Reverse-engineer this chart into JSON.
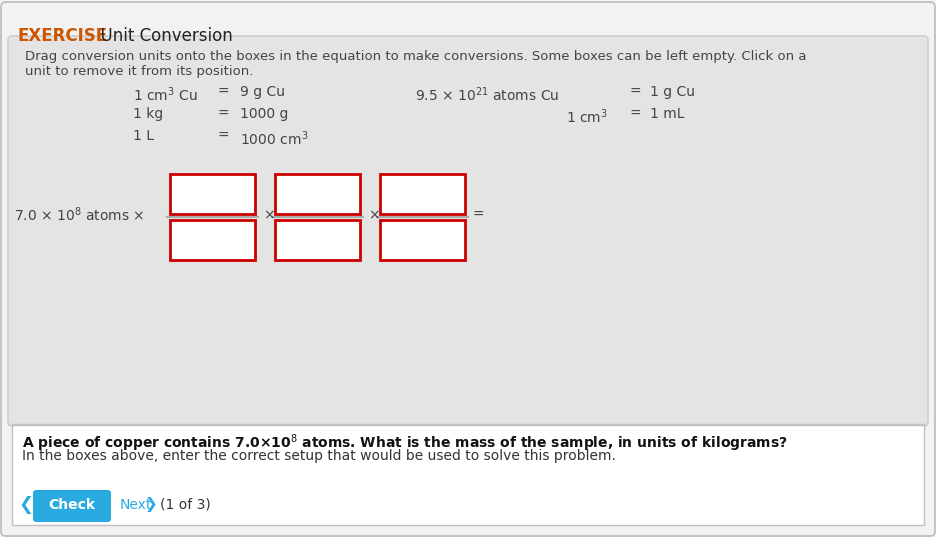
{
  "title_exercise": "EXERCISE",
  "title_text": "  Unit Conversion",
  "instruction_line1": "Drag conversion units onto the boxes in the equation to make conversions. Some boxes can be left empty. Click on a",
  "instruction_line2": "unit to remove it from its position.",
  "conv1_left": "1 cm$^3$ Cu",
  "conv1_eq": "=",
  "conv1_right": "9 g Cu",
  "conv1_left2": "9.5 × 10$^{21}$ atoms Cu",
  "conv1_eq2": "=",
  "conv1_right2": "1 g Cu",
  "conv2_left": "1 kg",
  "conv2_eq": "=",
  "conv2_right": "1000 g",
  "conv2_left2": "1 cm$^3$",
  "conv2_eq2": "=",
  "conv2_right2": "1 mL",
  "conv3_left": "1 L",
  "conv3_eq": "=",
  "conv3_right": "1000 cm$^3$",
  "starting_value": "7.0 × 10$^8$ atoms ×",
  "box_color": "#ffffff",
  "box_border_color": "#cc0000",
  "line_color": "#aaaaaa",
  "question_bold": "A piece of copper contains 7.0×10$^8$ atoms. What is the mass of the sample, in units of kilograms?",
  "question_normal": "In the boxes above, enter the correct setup that would be used to solve this problem.",
  "button_text": "Check",
  "button_color": "#29abe2",
  "nav_text": "Next",
  "counter_text": "(1 of 3)",
  "bg_outer": "#f2f2f2",
  "bg_inner": "#e4e4e4",
  "bg_bottom": "#ffffff",
  "header_color": "#cc5500",
  "text_color": "#444444"
}
